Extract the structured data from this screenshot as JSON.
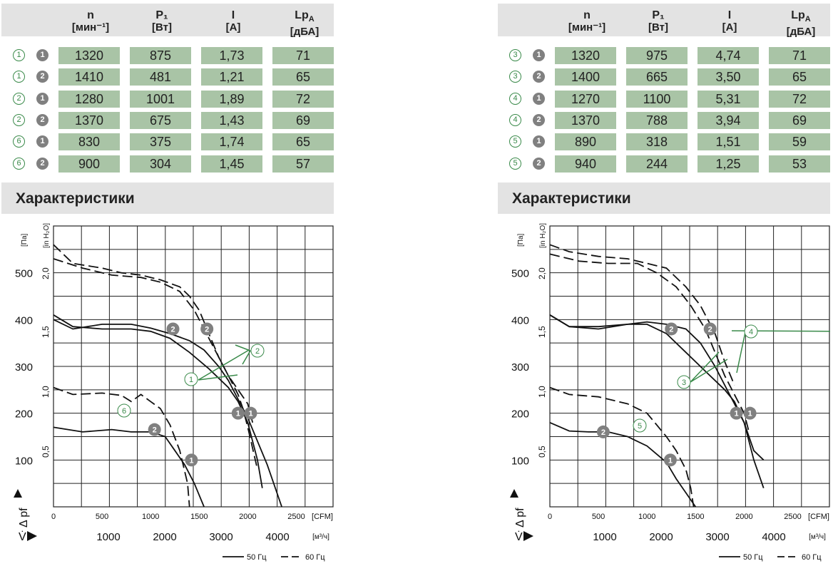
{
  "tables": [
    {
      "headers": [
        {
          "sym": "n",
          "unit": "[мин⁻¹]"
        },
        {
          "sym": "P₁",
          "unit": "[Вт]"
        },
        {
          "sym": "I",
          "unit": "[A]"
        },
        {
          "sym": "Lp",
          "sub": "A",
          "unit": "[дБА]"
        }
      ],
      "rows": [
        {
          "curve": "1",
          "point": "1",
          "n": "1320",
          "p": "875",
          "i": "1,73",
          "lp": "71"
        },
        {
          "curve": "1",
          "point": "2",
          "n": "1410",
          "p": "481",
          "i": "1,21",
          "lp": "65"
        },
        {
          "curve": "2",
          "point": "1",
          "n": "1280",
          "p": "1001",
          "i": "1,89",
          "lp": "72"
        },
        {
          "curve": "2",
          "point": "2",
          "n": "1370",
          "p": "675",
          "i": "1,43",
          "lp": "69"
        },
        {
          "curve": "6",
          "point": "1",
          "n": "830",
          "p": "375",
          "i": "1,74",
          "lp": "65"
        },
        {
          "curve": "6",
          "point": "2",
          "n": "900",
          "p": "304",
          "i": "1,45",
          "lp": "57"
        }
      ]
    },
    {
      "headers": [
        {
          "sym": "n",
          "unit": "[мин⁻¹]"
        },
        {
          "sym": "P₁",
          "unit": "[Вт]"
        },
        {
          "sym": "I",
          "unit": "[A]"
        },
        {
          "sym": "Lp",
          "sub": "A",
          "unit": "[дБА]"
        }
      ],
      "rows": [
        {
          "curve": "3",
          "point": "1",
          "n": "1320",
          "p": "975",
          "i": "4,74",
          "lp": "71"
        },
        {
          "curve": "3",
          "point": "2",
          "n": "1400",
          "p": "665",
          "i": "3,50",
          "lp": "65"
        },
        {
          "curve": "4",
          "point": "1",
          "n": "1270",
          "p": "1100",
          "i": "5,31",
          "lp": "72"
        },
        {
          "curve": "4",
          "point": "2",
          "n": "1370",
          "p": "788",
          "i": "3,94",
          "lp": "69"
        },
        {
          "curve": "5",
          "point": "1",
          "n": "890",
          "p": "318",
          "i": "1,51",
          "lp": "59"
        },
        {
          "curve": "5",
          "point": "2",
          "n": "940",
          "p": "244",
          "i": "1,25",
          "lp": "53"
        }
      ]
    }
  ],
  "section_title": "Характеристики",
  "chart_data": [
    {
      "type": "line",
      "y_axis": {
        "label": "Δ pf",
        "unit": "[Па]",
        "ticks": [
          "100",
          "200",
          "300",
          "400",
          "500"
        ],
        "range": [
          0,
          600
        ]
      },
      "y2_axis": {
        "unit": "[in H₂O]",
        "ticks": [
          "0,5",
          "1,0",
          "1,5",
          "2,0"
        ]
      },
      "x_axis": {
        "unit": "[CFM]",
        "ticks": [
          "0",
          "500",
          "1000",
          "1500",
          "2000",
          "2500"
        ],
        "range": [
          0,
          2900
        ]
      },
      "x2_axis": {
        "label": "V̇",
        "unit": "[м³/ч]",
        "ticks": [
          "1000",
          "2000",
          "3000",
          "4000"
        ]
      },
      "legend": [
        {
          "style": "solid",
          "label": "50 Гц"
        },
        {
          "style": "dashed",
          "label": "60 Гц"
        }
      ],
      "series": [
        {
          "curve": "1",
          "freq": "50 Гц",
          "x": [
            0,
            200,
            500,
            800,
            1000,
            1200,
            1400,
            1600,
            1800,
            1900,
            2000,
            2100,
            2150
          ],
          "y": [
            410,
            385,
            380,
            380,
            375,
            360,
            330,
            295,
            255,
            225,
            180,
            100,
            40
          ]
        },
        {
          "curve": "1",
          "freq": "60 Гц",
          "x": [
            0,
            300,
            600,
            900,
            1100,
            1300,
            1450,
            1600,
            1700,
            1800,
            1900,
            1950,
            2000,
            2100
          ],
          "y": [
            530,
            510,
            495,
            490,
            480,
            460,
            420,
            360,
            320,
            280,
            240,
            210,
            170,
            80
          ]
        },
        {
          "curve": "2",
          "freq": "50 Гц",
          "x": [
            0,
            200,
            500,
            800,
            1000,
            1200,
            1400,
            1550,
            1700,
            1800,
            1900,
            1950,
            2000,
            2200,
            2350
          ],
          "y": [
            400,
            380,
            390,
            390,
            382,
            370,
            355,
            335,
            300,
            270,
            230,
            210,
            190,
            90,
            0
          ]
        },
        {
          "curve": "2",
          "freq": "60 Гц",
          "x": [
            0,
            200,
            500,
            700,
            900,
            1100,
            1300,
            1400,
            1500,
            1600,
            1700,
            1800,
            1900,
            2000,
            2050
          ],
          "y": [
            560,
            520,
            510,
            500,
            495,
            485,
            470,
            450,
            420,
            370,
            320,
            280,
            250,
            220,
            180
          ]
        },
        {
          "curve": "6",
          "freq": "50 Гц",
          "x": [
            0,
            300,
            600,
            800,
            1000,
            1150,
            1250,
            1350,
            1450,
            1550
          ],
          "y": [
            170,
            160,
            165,
            160,
            160,
            150,
            120,
            90,
            50,
            0
          ]
        },
        {
          "curve": "6",
          "freq": "60 Гц",
          "x": [
            0,
            200,
            500,
            700,
            800,
            900,
            1000,
            1100,
            1200,
            1300,
            1380,
            1400
          ],
          "y": [
            255,
            240,
            243,
            238,
            225,
            240,
            225,
            210,
            175,
            120,
            50,
            0
          ]
        }
      ],
      "annotations": [
        "1",
        "2",
        "6"
      ],
      "points": [
        {
          "label": "1",
          "x": 1420,
          "y": 100
        },
        {
          "label": "2",
          "x": 1040,
          "y": 165
        },
        {
          "label": "2",
          "x": 1230,
          "y": 380
        },
        {
          "label": "2",
          "x": 1580,
          "y": 380
        },
        {
          "label": "1",
          "x": 1900,
          "y": 200
        },
        {
          "label": "1",
          "x": 2030,
          "y": 200
        }
      ]
    },
    {
      "type": "line",
      "y_axis": {
        "label": "Δ pf",
        "unit": "[Па]",
        "ticks": [
          "100",
          "200",
          "300",
          "400",
          "500"
        ],
        "range": [
          0,
          600
        ]
      },
      "y2_axis": {
        "unit": "[in H₂O]",
        "ticks": [
          "0,5",
          "1,0",
          "1,5",
          "2,0"
        ]
      },
      "x_axis": {
        "unit": "[CFM]",
        "ticks": [
          "0",
          "500",
          "1000",
          "1500",
          "2000",
          "2500"
        ],
        "range": [
          0,
          2900
        ]
      },
      "x2_axis": {
        "label": "V̇",
        "unit": "[м³/ч]",
        "ticks": [
          "1000",
          "2000",
          "3000",
          "4000"
        ]
      },
      "legend": [
        {
          "style": "solid",
          "label": "50 Гц"
        },
        {
          "style": "dashed",
          "label": "60 Гц"
        }
      ],
      "series": [
        {
          "curve": "3",
          "freq": "50 Гц",
          "x": [
            0,
            200,
            500,
            800,
            1000,
            1200,
            1400,
            1600,
            1800,
            1900,
            2000,
            2100,
            2200
          ],
          "y": [
            410,
            385,
            380,
            390,
            390,
            370,
            330,
            290,
            250,
            225,
            180,
            100,
            40
          ]
        },
        {
          "curve": "3",
          "freq": "60 Гц",
          "x": [
            0,
            300,
            600,
            900,
            1100,
            1300,
            1450,
            1600,
            1700,
            1800,
            1900,
            2000,
            2050
          ],
          "y": [
            540,
            525,
            520,
            520,
            500,
            470,
            430,
            380,
            330,
            280,
            240,
            200,
            160
          ]
        },
        {
          "curve": "4",
          "freq": "50 Гц",
          "x": [
            0,
            200,
            500,
            800,
            1000,
            1200,
            1400,
            1550,
            1700,
            1800,
            1900,
            1950,
            2000,
            2100,
            2200
          ],
          "y": [
            410,
            385,
            385,
            390,
            395,
            390,
            380,
            350,
            300,
            260,
            220,
            200,
            180,
            120,
            100
          ]
        },
        {
          "curve": "4",
          "freq": "60 Гц",
          "x": [
            0,
            200,
            500,
            800,
            1000,
            1200,
            1400,
            1550,
            1700,
            1800,
            1900
          ],
          "y": [
            560,
            545,
            535,
            530,
            520,
            510,
            470,
            430,
            370,
            310,
            260
          ]
        },
        {
          "curve": "5",
          "freq": "50 Гц",
          "x": [
            0,
            200,
            400,
            600,
            800,
            1000,
            1200,
            1300,
            1400,
            1500
          ],
          "y": [
            180,
            162,
            160,
            160,
            150,
            130,
            95,
            60,
            30,
            0
          ]
        },
        {
          "curve": "5",
          "freq": "60 Гц",
          "x": [
            0,
            200,
            500,
            800,
            1000,
            1100,
            1200,
            1300,
            1400,
            1450,
            1480
          ],
          "y": [
            255,
            240,
            235,
            220,
            200,
            175,
            150,
            120,
            80,
            40,
            0
          ]
        }
      ],
      "annotations": [
        "3",
        "4",
        "5"
      ],
      "points": [
        {
          "label": "2",
          "x": 550,
          "y": 160
        },
        {
          "label": "1",
          "x": 1240,
          "y": 100
        },
        {
          "label": "2",
          "x": 1250,
          "y": 380
        },
        {
          "label": "2",
          "x": 1650,
          "y": 380
        },
        {
          "label": "1",
          "x": 1920,
          "y": 200
        },
        {
          "label": "1",
          "x": 2060,
          "y": 200
        }
      ]
    }
  ]
}
